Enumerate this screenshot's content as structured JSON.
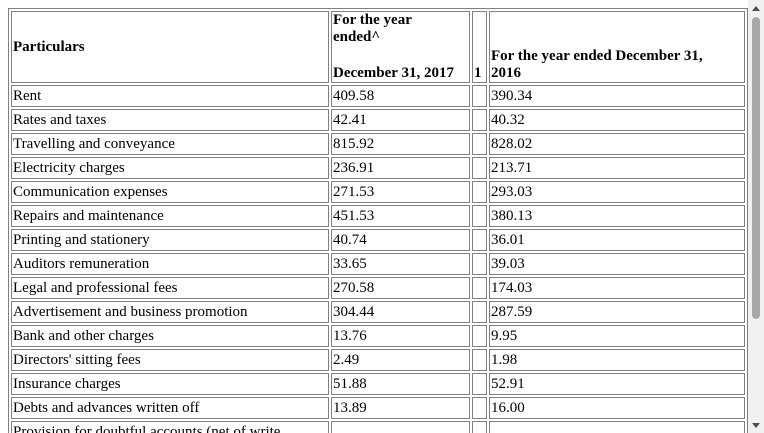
{
  "table": {
    "header": {
      "particulars": "Particulars",
      "col2_top": "For the year ended^",
      "col2_bottom": "December 31, 2017",
      "col3": "1",
      "col4_top": "For the year ended December 31,",
      "col4_bottom": "2016"
    },
    "rows": [
      {
        "label": "Rent",
        "y2017": "409.58",
        "y2016": "390.34"
      },
      {
        "label": "Rates and taxes",
        "y2017": "42.41",
        "y2016": "40.32"
      },
      {
        "label": "Travelling and conveyance",
        "y2017": "815.92",
        "y2016": "828.02"
      },
      {
        "label": "Electricity charges",
        "y2017": "236.91",
        "y2016": "213.71"
      },
      {
        "label": "Communication expenses",
        "y2017": "271.53",
        "y2016": "293.03"
      },
      {
        "label": "Repairs and maintenance",
        "y2017": "451.53",
        "y2016": "380.13"
      },
      {
        "label": "Printing and stationery",
        "y2017": "40.74",
        "y2016": "36.01"
      },
      {
        "label": "Auditors remuneration",
        "y2017": "33.65",
        "y2016": "39.03"
      },
      {
        "label": "Legal and professional fees",
        "y2017": "270.58",
        "y2016": "174.03"
      },
      {
        "label": "Advertisement and business promotion",
        "y2017": "304.44",
        "y2016": "287.59"
      },
      {
        "label": "Bank and other charges",
        "y2017": "13.76",
        "y2016": "9.95"
      },
      {
        "label": "Directors' sitting fees",
        "y2017": "2.49",
        "y2016": "1.98"
      },
      {
        "label": "Insurance charges",
        "y2017": "51.88",
        "y2016": "52.91"
      },
      {
        "label": "Debts and advances written off",
        "y2017": "13.89",
        "y2016": "16.00"
      },
      {
        "label": "Provision for doubtful accounts (net of write",
        "y2017": "",
        "y2016": ""
      }
    ]
  },
  "scrollbar": {
    "up_icon": "triangle-up",
    "down_icon": "triangle-down"
  }
}
